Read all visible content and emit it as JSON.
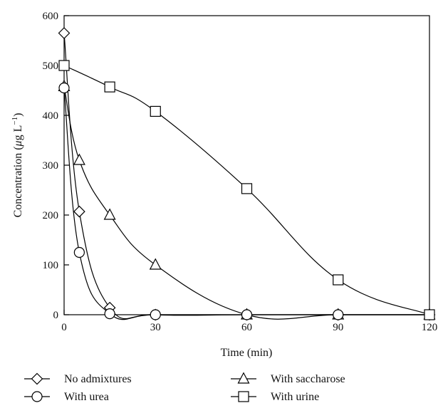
{
  "chart_data": {
    "type": "line",
    "xlabel": "Time (min)",
    "ylabel_parts": {
      "pre": "Concentration (",
      "mu": "μ",
      "mid": "g L",
      "sup": "−1",
      "post": ")"
    },
    "xlim": [
      0,
      120
    ],
    "ylim": [
      0,
      600
    ],
    "xticks": [
      0,
      30,
      60,
      90,
      120
    ],
    "yticks": [
      0,
      100,
      200,
      300,
      400,
      500,
      600
    ],
    "grid": false,
    "legend_position": "bottom",
    "series": [
      {
        "name": "No admixtures",
        "marker": "diamond",
        "x": [
          0,
          5,
          15,
          30,
          60,
          90,
          120
        ],
        "y": [
          565,
          207,
          14,
          0,
          0,
          0,
          0
        ]
      },
      {
        "name": "With saccharose",
        "marker": "triangle",
        "x": [
          0,
          5,
          15,
          30,
          60,
          90,
          120
        ],
        "y": [
          458,
          310,
          200,
          100,
          0,
          0,
          0
        ]
      },
      {
        "name": "With urea",
        "marker": "circle",
        "x": [
          0,
          5,
          15,
          30,
          60,
          90,
          120
        ],
        "y": [
          455,
          125,
          2,
          0,
          0,
          0,
          0
        ]
      },
      {
        "name": "With urine",
        "marker": "square",
        "x": [
          0,
          15,
          30,
          60,
          90,
          120
        ],
        "y": [
          500,
          457,
          408,
          253,
          70,
          0
        ]
      }
    ]
  }
}
